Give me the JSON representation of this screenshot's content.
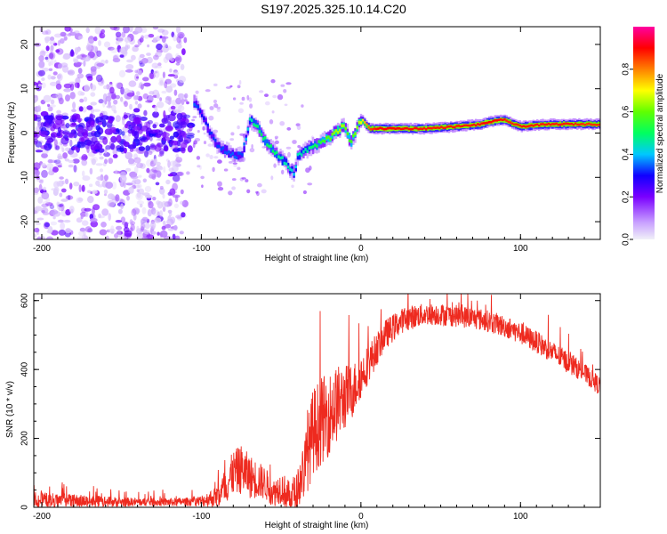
{
  "title": "S197.2025.325.10.14.C20",
  "chart_data": [
    {
      "type": "heatmap",
      "name": "spectrogram",
      "xlabel": "Height of straight line (km)",
      "ylabel": "Frequency (Hz)",
      "xlim": [
        -205,
        150
      ],
      "ylim": [
        -24,
        24
      ],
      "x_ticks": [
        -200,
        -100,
        0,
        100
      ],
      "x_tick_labels": [
        "-200",
        "-100",
        "0",
        "100"
      ],
      "y_ticks": [
        -20,
        -10,
        0,
        10,
        20
      ],
      "y_tick_labels": [
        "-20",
        "-10",
        "0",
        "10",
        "20"
      ],
      "colorbar": {
        "label": "Normalized spectral amplitude",
        "range": [
          0,
          1
        ],
        "ticks": [
          0.0,
          0.2,
          0.4,
          0.6,
          0.8
        ],
        "tick_labels": [
          "0.0",
          "0.2",
          "0.4",
          "0.6",
          "0.8"
        ],
        "stops": [
          {
            "v": 0.0,
            "color": "#f0f0f8"
          },
          {
            "v": 0.08,
            "color": "#c8a0ff"
          },
          {
            "v": 0.2,
            "color": "#7a00ff"
          },
          {
            "v": 0.3,
            "color": "#1000ff"
          },
          {
            "v": 0.4,
            "color": "#00c8ff"
          },
          {
            "v": 0.5,
            "color": "#00ff60"
          },
          {
            "v": 0.6,
            "color": "#60ff00"
          },
          {
            "v": 0.7,
            "color": "#ffff00"
          },
          {
            "v": 0.8,
            "color": "#ff8000"
          },
          {
            "v": 0.9,
            "color": "#ff0000"
          },
          {
            "v": 1.0,
            "color": "#ff00a0"
          }
        ]
      },
      "ridge": {
        "x": [
          -105,
          -100,
          -95,
          -90,
          -85,
          -80,
          -75,
          -70,
          -65,
          -60,
          -55,
          -50,
          -45,
          -42,
          -40,
          -35,
          -30,
          -25,
          -20,
          -15,
          -12,
          -10,
          -7,
          -5,
          -2,
          0,
          5,
          10,
          20,
          40,
          60,
          70,
          75,
          80,
          85,
          90,
          95,
          100,
          110,
          120,
          130,
          140,
          150
        ],
        "freq": [
          7,
          4,
          0,
          -3,
          -4,
          -5,
          -5,
          3,
          1,
          -2,
          -4,
          -6,
          -8,
          -9,
          -5,
          -4,
          -3,
          -2,
          -1,
          0.5,
          2,
          1,
          -2,
          -1,
          2,
          3,
          1,
          1,
          1,
          1,
          1.5,
          1.8,
          2,
          2.5,
          2.8,
          3,
          2,
          1.5,
          1.8,
          2,
          2,
          2,
          2
        ],
        "amp": [
          0.35,
          0.3,
          0.32,
          0.33,
          0.34,
          0.35,
          0.33,
          0.45,
          0.5,
          0.5,
          0.5,
          0.45,
          0.45,
          0.4,
          0.45,
          0.45,
          0.5,
          0.55,
          0.6,
          0.65,
          0.65,
          0.6,
          0.55,
          0.6,
          0.65,
          0.7,
          0.85,
          0.9,
          0.9,
          0.88,
          0.88,
          0.88,
          0.9,
          0.9,
          0.9,
          0.88,
          0.86,
          0.88,
          0.88,
          0.88,
          0.88,
          0.86,
          0.86
        ]
      }
    },
    {
      "type": "line",
      "name": "snr",
      "title": "",
      "xlabel": "Height of straight line (km)",
      "ylabel": "SNR (10 * v/v)",
      "xlim": [
        -205,
        150
      ],
      "ylim": [
        0,
        620
      ],
      "x_ticks": [
        -200,
        -100,
        0,
        100
      ],
      "x_tick_labels": [
        "-200",
        "-100",
        "0",
        "100"
      ],
      "y_ticks": [
        0,
        200,
        400,
        600
      ],
      "y_tick_labels": [
        "0",
        "200",
        "400",
        "600"
      ],
      "series": [
        {
          "name": "SNR",
          "color": "#ee2a1f",
          "x": [
            -205,
            -190,
            -180,
            -160,
            -140,
            -120,
            -110,
            -100,
            -95,
            -90,
            -85,
            -80,
            -75,
            -70,
            -65,
            -60,
            -55,
            -50,
            -45,
            -40,
            -35,
            -30,
            -25,
            -20,
            -15,
            -10,
            -5,
            0,
            5,
            10,
            15,
            20,
            25,
            30,
            40,
            50,
            60,
            70,
            80,
            90,
            100,
            110,
            120,
            130,
            140,
            150
          ],
          "values": [
            22,
            20,
            18,
            16,
            15,
            15,
            16,
            18,
            25,
            30,
            60,
            100,
            110,
            90,
            80,
            70,
            40,
            60,
            30,
            50,
            120,
            220,
            250,
            270,
            300,
            320,
            340,
            380,
            420,
            460,
            500,
            520,
            540,
            550,
            560,
            560,
            555,
            550,
            540,
            525,
            505,
            480,
            450,
            420,
            390,
            350
          ],
          "noise": [
            30,
            25,
            25,
            20,
            15,
            15,
            15,
            20,
            30,
            40,
            70,
            80,
            90,
            80,
            70,
            60,
            50,
            60,
            60,
            70,
            120,
            160,
            160,
            150,
            140,
            120,
            100,
            80,
            70,
            60,
            55,
            50,
            45,
            45,
            40,
            40,
            40,
            40,
            40,
            40,
            40,
            40,
            40,
            40,
            35,
            35
          ]
        }
      ]
    }
  ]
}
